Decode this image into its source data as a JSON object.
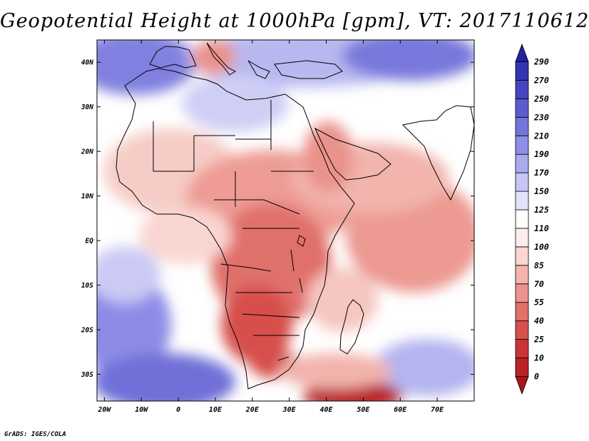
{
  "chart_data": {
    "type": "heatmap",
    "title": "Geopotential Height at 1000hPa [gpm], VT: 2017110612",
    "variable": "Geopotential Height at 1000hPa",
    "units": "gpm",
    "valid_time": "2017110612",
    "x_ticks": [
      "20W",
      "10W",
      "0",
      "10E",
      "20E",
      "30E",
      "40E",
      "50E",
      "60E",
      "70E"
    ],
    "x_tick_values": [
      -20,
      -10,
      0,
      10,
      20,
      30,
      40,
      50,
      60,
      70
    ],
    "y_ticks": [
      "40N",
      "30N",
      "20N",
      "10N",
      "EQ",
      "10S",
      "20S",
      "30S"
    ],
    "y_tick_values": [
      40,
      30,
      20,
      10,
      0,
      -10,
      -20,
      -30
    ],
    "lon_range": [
      -22,
      80
    ],
    "lat_range": [
      -36,
      45
    ],
    "colorbar": {
      "levels": [
        "0",
        "10",
        "25",
        "40",
        "55",
        "70",
        "85",
        "100",
        "110",
        "125",
        "150",
        "170",
        "190",
        "210",
        "230",
        "250",
        "270",
        "290"
      ],
      "colors": [
        "#a8141a",
        "#b92226",
        "#c93535",
        "#d6504c",
        "#e0706a",
        "#ea928b",
        "#f2b4ad",
        "#f9d6d1",
        "#fdeeec",
        "#ffffff",
        "#e2e2fa",
        "#c6c6f3",
        "#aaaaee",
        "#8e8ee6",
        "#7474dc",
        "#5c5ccf",
        "#4646c2",
        "#3434b2",
        "#22229f"
      ],
      "extend": "both",
      "under_color": "#a8141a",
      "over_color": "#22229f"
    }
  },
  "footer": {
    "credit": "GrADS: IGES/COLA"
  }
}
